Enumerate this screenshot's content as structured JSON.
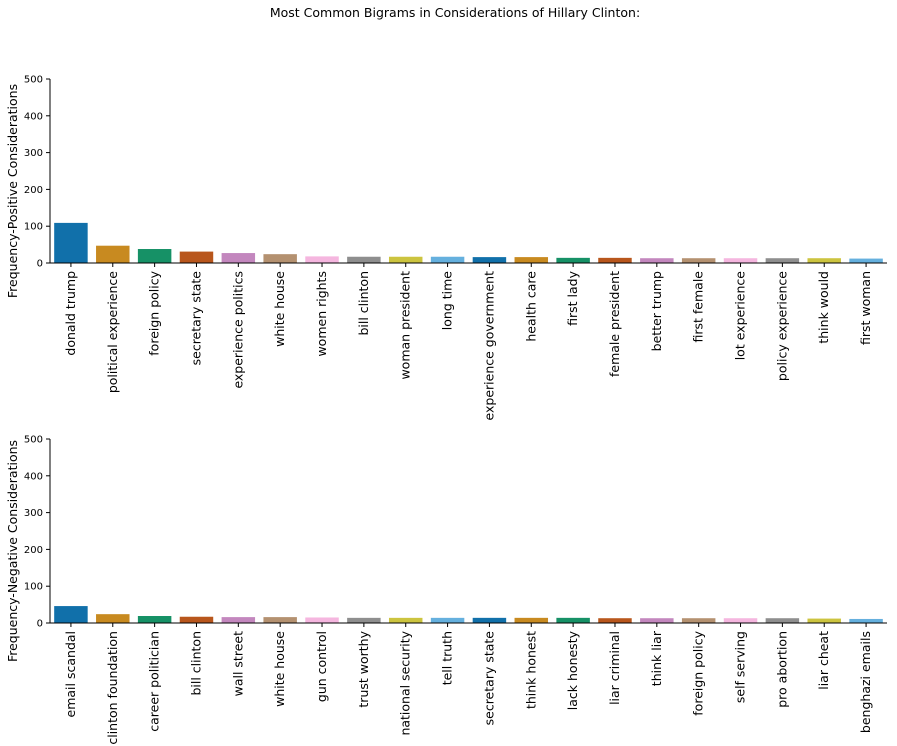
{
  "chart_data": {
    "title": "Most Common Bigrams in Considerations of Hillary Clinton:",
    "charts": [
      {
        "type": "bar",
        "ylabel": "Frequency-Positive Considerations",
        "ylim": [
          0,
          500
        ],
        "yticks": [
          0,
          100,
          200,
          300,
          400,
          500
        ],
        "categories": [
          "donald trump",
          "political experience",
          "foreign policy",
          "secretary state",
          "experience politics",
          "white house",
          "women rights",
          "bill clinton",
          "woman president",
          "long time",
          "experience government",
          "health care",
          "first lady",
          "female president",
          "better trump",
          "first female",
          "lot experience",
          "policy experience",
          "think would",
          "first woman"
        ],
        "values": [
          109,
          47,
          38,
          31,
          27,
          24,
          18,
          17,
          17,
          17,
          16,
          16,
          14,
          14,
          13,
          13,
          13,
          13,
          13,
          12
        ]
      },
      {
        "type": "bar",
        "ylabel": "Frequency-Negative Considerations",
        "ylim": [
          0,
          500
        ],
        "yticks": [
          0,
          100,
          200,
          300,
          400,
          500
        ],
        "categories": [
          "email scandal",
          "clinton foundation",
          "career politician",
          "bill clinton",
          "wall street",
          "white house",
          "gun control",
          "trust worthy",
          "national security",
          "tell truth",
          "secretary state",
          "think honest",
          "lack honesty",
          "liar criminal",
          "think liar",
          "foreign policy",
          "self serving",
          "pro abortion",
          "liar cheat",
          "benghazi emails"
        ],
        "values": [
          46,
          24,
          19,
          17,
          16,
          16,
          15,
          14,
          14,
          14,
          14,
          14,
          14,
          13,
          13,
          13,
          13,
          13,
          12,
          11
        ]
      }
    ],
    "colors": [
      "#1170aa",
      "#c88a20",
      "#169166",
      "#b8561c",
      "#c387be",
      "#b49170",
      "#f5b6df",
      "#8e8e8e",
      "#ccc43f",
      "#65b0de"
    ]
  }
}
